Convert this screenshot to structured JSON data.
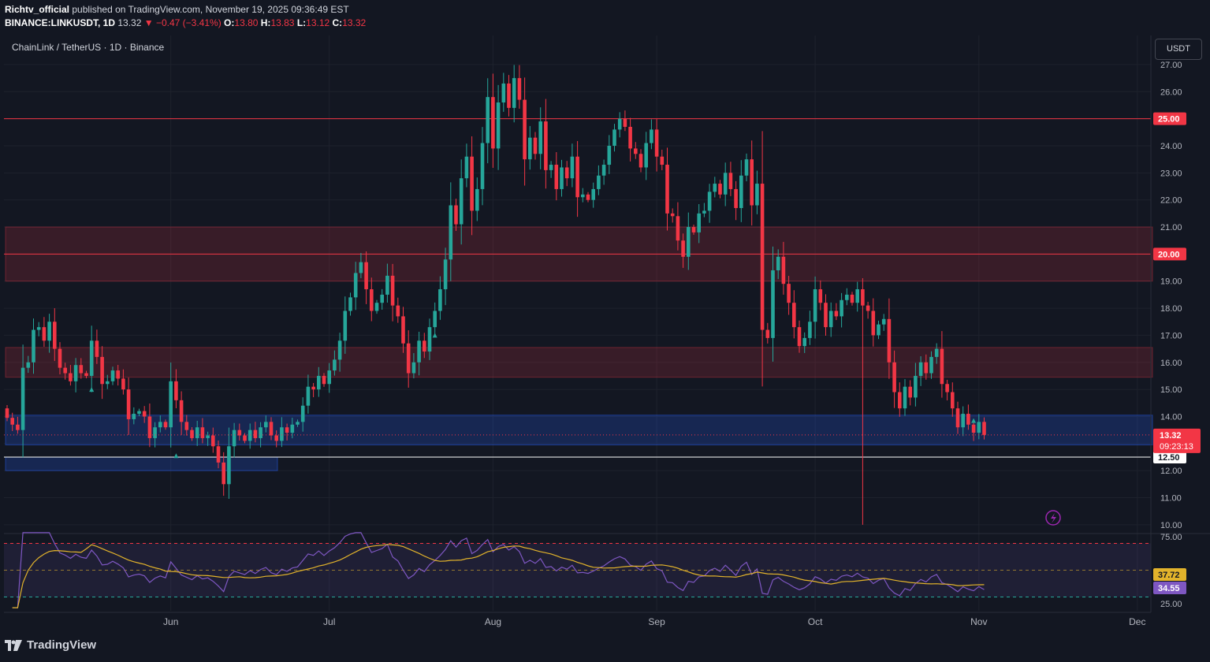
{
  "header": {
    "author": "Richtv_official",
    "published_text": "published on TradingView.com, November 19, 2025 09:36:49 EST",
    "symbol": "BINANCE:LINKUSDT, 1D",
    "last": "13.32",
    "arrow": "▼",
    "change": "−0.47 (−3.41%)",
    "o_label": "O:",
    "o": "13.80",
    "h_label": "H:",
    "h": "13.83",
    "l_label": "L:",
    "l": "13.12",
    "c_label": "C:",
    "c": "13.32"
  },
  "chart_title": "ChainLink / TetherUS · 1D · Binance",
  "currency_button": "USDT",
  "branding": "TradingView",
  "colors": {
    "background": "#131722",
    "up": "#26a69a",
    "down": "#f23645",
    "zone_red": "#f23645",
    "zone_blue": "#2962ff",
    "rsi_line": "#7e57c2",
    "rsi_ma": "#e2b32b",
    "text": "#b2b5be"
  },
  "chart_data": {
    "type": "candlestick",
    "title": "ChainLink / TetherUS · 1D · Binance",
    "start_date": "2025-05-01",
    "x_tick_labels": [
      {
        "label": "Jun",
        "day": 31
      },
      {
        "label": "Jul",
        "day": 61
      },
      {
        "label": "Aug",
        "day": 92
      },
      {
        "label": "Sep",
        "day": 123
      },
      {
        "label": "Oct",
        "day": 153
      },
      {
        "label": "Nov",
        "day": 184
      },
      {
        "label": "Dec",
        "day": 214
      }
    ],
    "price_axis_range": [
      9.8,
      27.7
    ],
    "price_ticks": [
      "27.00",
      "26.00",
      "24.00",
      "23.00",
      "22.00",
      "21.00",
      "19.00",
      "18.00",
      "17.00",
      "16.00",
      "15.00",
      "14.00",
      "12.00",
      "11.00",
      "10.00"
    ],
    "closes": [
      13.95,
      13.7,
      13.5,
      15.8,
      16.0,
      17.2,
      17.3,
      16.8,
      17.5,
      16.5,
      15.8,
      15.6,
      15.3,
      15.9,
      15.6,
      15.5,
      16.8,
      16.2,
      15.2,
      15.3,
      15.7,
      15.4,
      15.0,
      13.9,
      14.1,
      14.2,
      14.0,
      13.2,
      13.6,
      13.8,
      13.6,
      15.3,
      14.6,
      13.8,
      13.5,
      13.2,
      13.6,
      13.2,
      13.3,
      12.9,
      12.3,
      11.5,
      12.9,
      13.5,
      13.3,
      13.1,
      13.5,
      13.2,
      13.6,
      13.8,
      13.3,
      13.1,
      13.6,
      13.4,
      13.7,
      13.8,
      14.4,
      15.1,
      15.0,
      15.5,
      15.2,
      15.7,
      16.1,
      16.8,
      17.9,
      18.4,
      19.3,
      19.7,
      18.7,
      17.9,
      18.2,
      18.5,
      19.2,
      18.1,
      17.7,
      16.7,
      15.6,
      16.0,
      16.8,
      16.4,
      17.3,
      17.9,
      18.7,
      19.8,
      21.8,
      21.1,
      22.8,
      23.6,
      21.6,
      22.4,
      24.1,
      25.8,
      23.9,
      25.6,
      26.3,
      25.4,
      26.5,
      25.7,
      23.5,
      24.3,
      23.7,
      24.9,
      23.1,
      23.3,
      22.4,
      23.2,
      22.8,
      23.6,
      22.1,
      22.2,
      22.0,
      22.4,
      22.9,
      23.3,
      24.0,
      24.6,
      25.0,
      24.7,
      23.9,
      23.7,
      23.2,
      24.1,
      24.6,
      23.6,
      23.3,
      21.5,
      21.4,
      20.5,
      19.9,
      21.0,
      20.8,
      21.5,
      21.6,
      22.3,
      22.6,
      22.2,
      23.0,
      22.4,
      21.7,
      22.9,
      23.5,
      21.8,
      22.6,
      17.2,
      16.9,
      19.4,
      19.9,
      18.9,
      18.2,
      17.3,
      16.6,
      16.9,
      17.5,
      18.7,
      18.2,
      17.3,
      17.9,
      17.7,
      18.3,
      18.5,
      18.2,
      18.7,
      18.1,
      17.9,
      17.0,
      17.4,
      17.6,
      16.0,
      14.9,
      14.3,
      15.1,
      14.7,
      15.5,
      16.0,
      15.6,
      16.2,
      16.5,
      15.2,
      14.9,
      14.3,
      13.6,
      14.1,
      13.7,
      13.4,
      13.8,
      13.32
    ],
    "shaded_zones": [
      {
        "low": 19.0,
        "high": 21.0,
        "color": "red"
      },
      {
        "low": 15.45,
        "high": 16.55,
        "color": "red"
      },
      {
        "low": 12.95,
        "high": 14.05,
        "color": "blue"
      },
      {
        "low": 12.0,
        "high": 12.5,
        "color": "blue"
      }
    ],
    "horizontal_levels": [
      {
        "value": 25.0,
        "label": "25.00",
        "color": "red"
      },
      {
        "value": 20.0,
        "label": "20.00",
        "color": "red"
      },
      {
        "value": 12.5,
        "label": "12.50",
        "color": "white"
      }
    ],
    "last_price_label": "13.32",
    "countdown_label": "09:23:13",
    "flash_crash": {
      "day": 162,
      "low": 10.0
    },
    "rsi": {
      "range": [
        20,
        80
      ],
      "ticks": [
        "75.00",
        "25.00"
      ],
      "upper_band": 70,
      "middle": 50,
      "lower_band": 30,
      "rsi_label": "34.55",
      "ma_label": "37.72"
    }
  }
}
